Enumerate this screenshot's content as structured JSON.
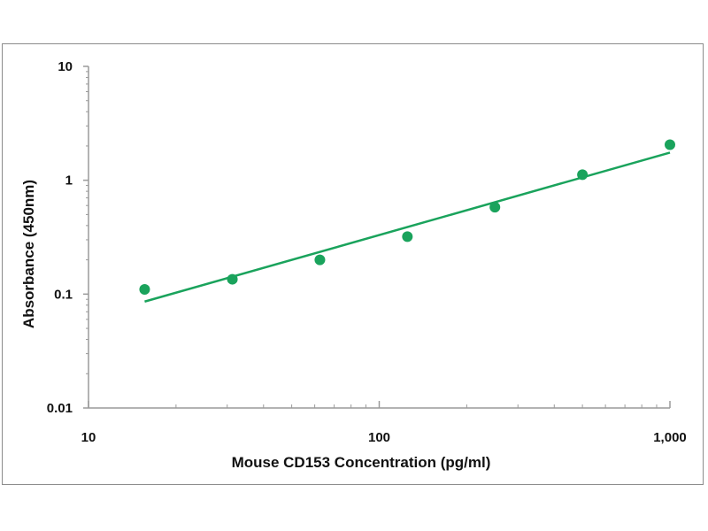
{
  "chart_data": {
    "type": "scatter",
    "title": "",
    "xlabel": "Mouse CD153 Concentration (pg/ml)",
    "ylabel": "Absorbance (450nm)",
    "x_scale": "log",
    "y_scale": "log",
    "xlim": [
      10,
      1000
    ],
    "ylim": [
      0.01,
      10
    ],
    "x_tick_labels": [
      "10",
      "100",
      "1,000"
    ],
    "y_tick_labels": [
      "10",
      "1",
      "0.1",
      "0.01"
    ],
    "grid": false,
    "legend": "none",
    "series": [
      {
        "points": [
          {
            "x": 15.6,
            "y": 0.11
          },
          {
            "x": 31.25,
            "y": 0.135
          },
          {
            "x": 62.5,
            "y": 0.2
          },
          {
            "x": 125,
            "y": 0.32
          },
          {
            "x": 250,
            "y": 0.58
          },
          {
            "x": 500,
            "y": 1.12
          },
          {
            "x": 1000,
            "y": 2.05
          }
        ],
        "fit_line": [
          {
            "x": 15.6,
            "y": 0.086
          },
          {
            "x": 1000,
            "y": 1.75
          }
        ]
      }
    ],
    "colors": {
      "marker": "#1aa35c",
      "line": "#1aa35c",
      "axis": "#9a9a9a",
      "frame": "#8c8c8c"
    }
  }
}
